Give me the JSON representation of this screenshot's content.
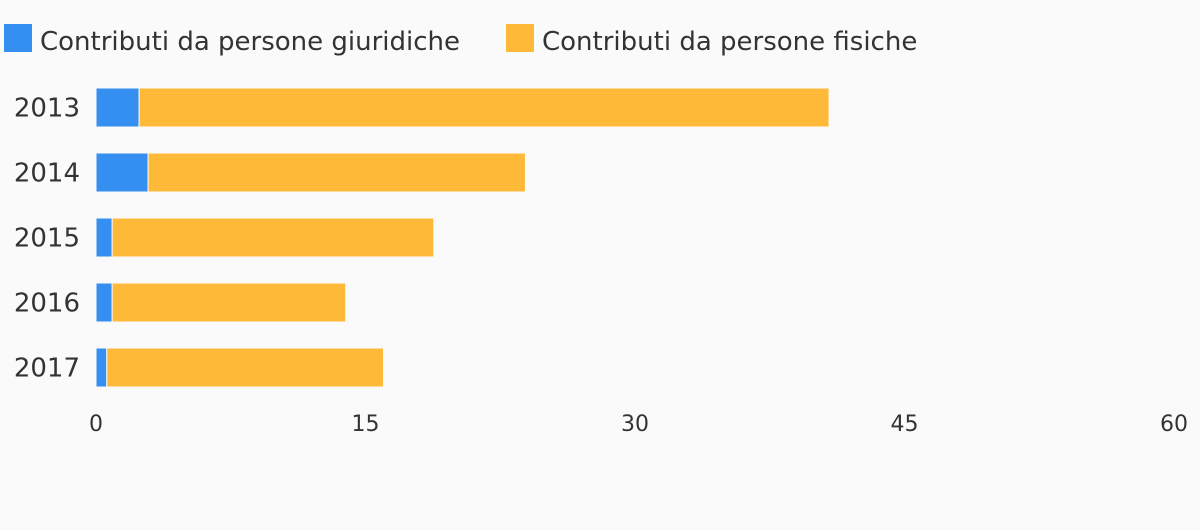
{
  "chart_data": {
    "type": "bar",
    "orientation": "horizontal",
    "stacked": true,
    "categories": [
      "2013",
      "2014",
      "2015",
      "2016",
      "2017"
    ],
    "series": [
      {
        "name": "Contributi da persone giuridiche",
        "color": "#348ff0",
        "values": [
          2.4,
          2.9,
          0.9,
          0.9,
          0.6
        ]
      },
      {
        "name": "Contributi da persone fisiche",
        "color": "#ffb938",
        "values": [
          38.4,
          21.0,
          17.9,
          13.0,
          15.4
        ]
      }
    ],
    "x_ticks": [
      "0",
      "15",
      "30",
      "45",
      "60"
    ],
    "xlim": [
      0,
      60
    ],
    "grid": false,
    "legend_position": "top-left"
  }
}
